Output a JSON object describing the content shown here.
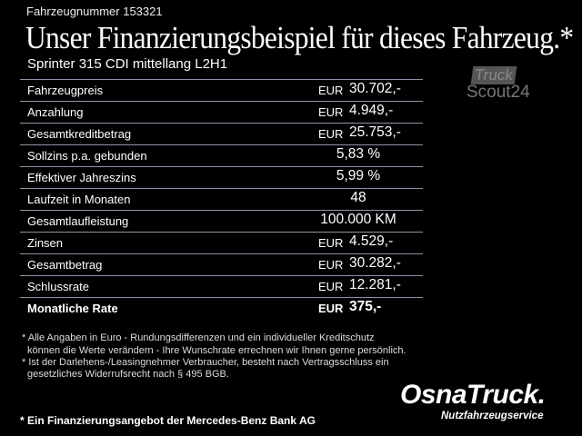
{
  "vehicle_number": "Fahrzeugnummer 153321",
  "title": "Unser Finanzierungsbeispiel für dieses Fahrzeug.*",
  "subtitle": "Sprinter 315 CDI mittellang L2H1",
  "rows": [
    {
      "label": "Fahrzeugpreis",
      "currency": "EUR",
      "value": "30.702,-"
    },
    {
      "label": "Anzahlung",
      "currency": "EUR",
      "value": "4.949,-"
    },
    {
      "label": "Gesamtkreditbetrag",
      "currency": "EUR",
      "value": "25.753,-"
    },
    {
      "label": "Sollzins p.a. gebunden",
      "currency": "",
      "value": "5,83 %"
    },
    {
      "label": "Effektiver Jahreszins",
      "currency": "",
      "value": "5,99 %"
    },
    {
      "label": "Laufzeit in Monaten",
      "currency": "",
      "value": "48"
    },
    {
      "label": "Gesamtlaufleistung",
      "currency": "",
      "value": "100.000 KM"
    },
    {
      "label": "Zinsen",
      "currency": "EUR",
      "value": "4.529,-"
    },
    {
      "label": "Gesamtbetrag",
      "currency": "EUR",
      "value": "30.282,-"
    },
    {
      "label": "Schlussrate",
      "currency": "EUR",
      "value": "12.281,-"
    },
    {
      "label": "Monatliche Rate",
      "currency": "EUR",
      "value": "375,-"
    }
  ],
  "truckscout": {
    "line1": "Truck",
    "line2": "Scout24"
  },
  "notes": [
    "* Alle Angaben in Euro - Rundungsdifferenzen und ein individueller Kreditschutz",
    "  können die Werte verändern - Ihre Wunschrate errechnen wir Ihnen gerne persönlich.",
    "* Ist der Darlehens-/Leasingnehmer Verbraucher, besteht nach Vertragsschluss ein",
    "  gesetzliches Widerrufsrecht nach § 495 BGB."
  ],
  "logo": {
    "name": "OsnaTruck.",
    "tagline": "Nutzfahrzeugservice"
  },
  "bank_note": "* Ein Finanzierungsangebot der Mercedes-Benz Bank AG"
}
